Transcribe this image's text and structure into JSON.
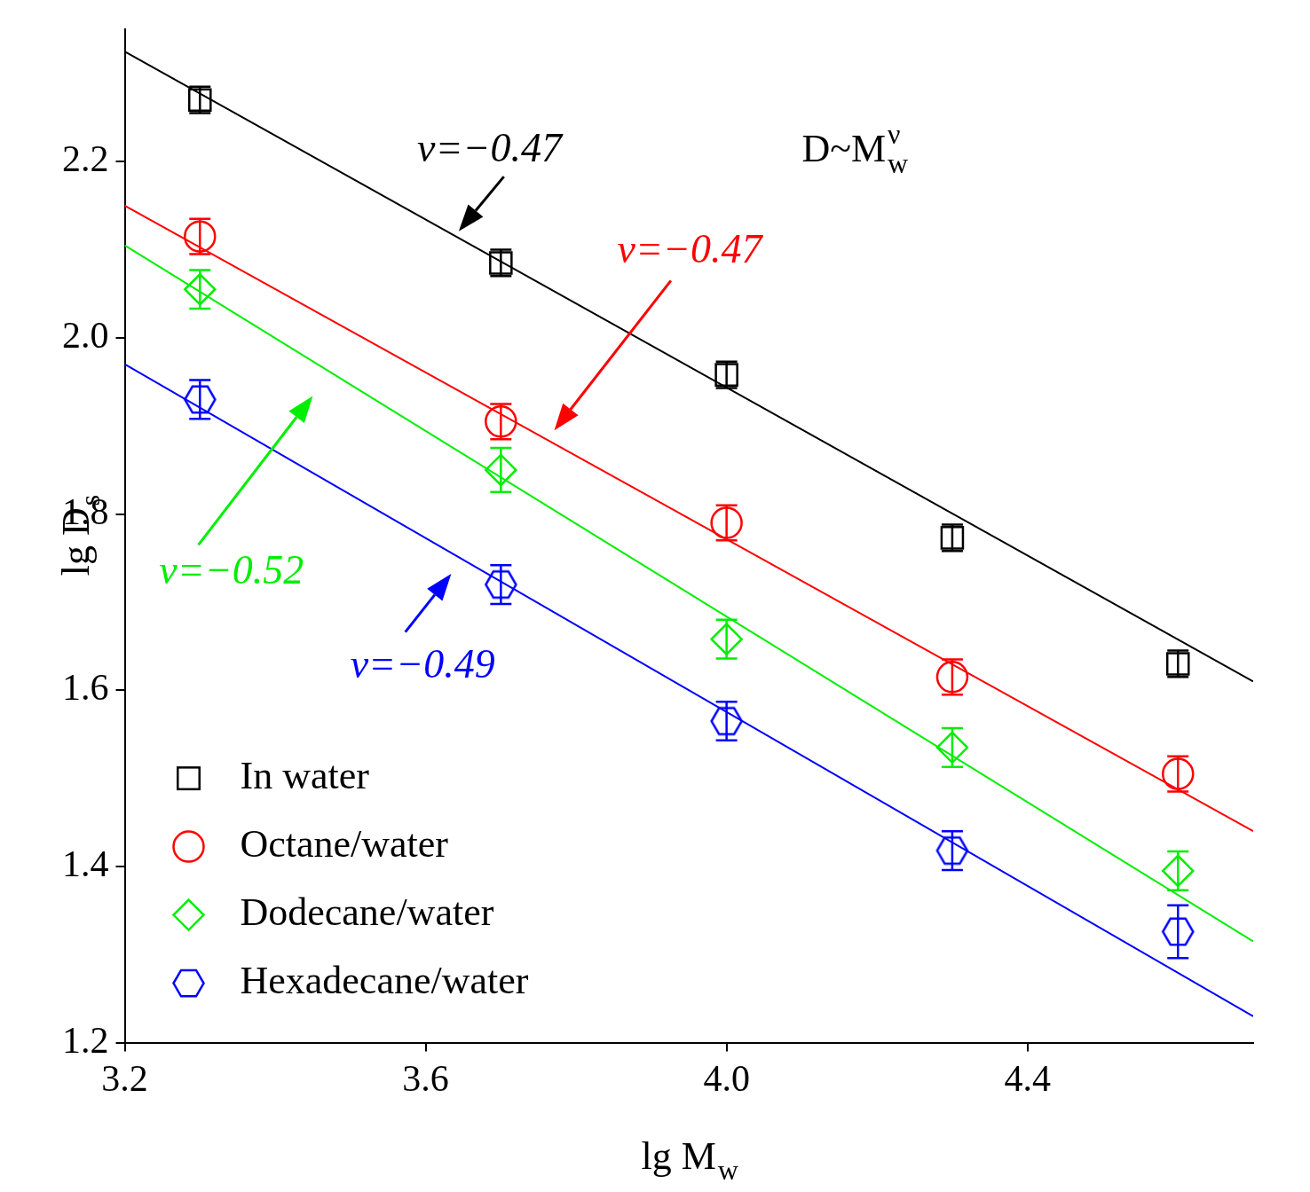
{
  "chart_data": {
    "type": "scatter",
    "x_label": {
      "base": "lg M",
      "sub": "w"
    },
    "y_label": {
      "base": "lg D",
      "sub": "s"
    },
    "formula": {
      "base": "D~M",
      "sub": "w",
      "sup": "ν"
    },
    "x": [
      3.3,
      3.7,
      4.0,
      4.3,
      4.6
    ],
    "series": [
      {
        "name": "In water",
        "color": "#000000",
        "marker": "square",
        "values": [
          2.27,
          2.085,
          1.958,
          1.773,
          1.63
        ],
        "errors": [
          0.015,
          0.015,
          0.015,
          0.015,
          0.015
        ],
        "fit": {
          "x": [
            3.2,
            4.7
          ],
          "y": [
            2.325,
            1.61
          ]
        }
      },
      {
        "name": "Octane/water",
        "color": "#ff0000",
        "marker": "circle",
        "values": [
          2.115,
          1.905,
          1.79,
          1.615,
          1.505
        ],
        "errors": [
          0.02,
          0.02,
          0.02,
          0.02,
          0.02
        ],
        "fit": {
          "x": [
            3.2,
            4.7
          ],
          "y": [
            2.15,
            1.44
          ]
        }
      },
      {
        "name": "Dodecane/water",
        "color": "#00ee00",
        "marker": "diamond",
        "values": [
          2.055,
          1.85,
          1.658,
          1.535,
          1.395
        ],
        "errors": [
          0.022,
          0.025,
          0.022,
          0.022,
          0.022
        ],
        "fit": {
          "x": [
            3.2,
            4.7
          ],
          "y": [
            2.105,
            1.315
          ]
        }
      },
      {
        "name": "Hexadecane/water",
        "color": "#0000ff",
        "marker": "hexagon",
        "values": [
          1.93,
          1.72,
          1.565,
          1.418,
          1.326
        ],
        "errors": [
          0.022,
          0.022,
          0.022,
          0.022,
          0.03
        ],
        "fit": {
          "x": [
            3.2,
            4.7
          ],
          "y": [
            1.97,
            1.23
          ]
        }
      }
    ],
    "annotations": [
      {
        "text": "v=−0.47",
        "color": "#000000"
      },
      {
        "text": "v=−0.47",
        "color": "#ff0000"
      },
      {
        "text": "v=−0.52",
        "color": "#00ee00"
      },
      {
        "text": "v=−0.49",
        "color": "#0000ff"
      }
    ],
    "xlim": [
      3.2,
      4.7
    ],
    "xticks": [
      3.2,
      3.6,
      {
        "value": 4,
        "label": "4.0"
      },
      4.4
    ],
    "ylim": [
      1.2,
      2.35
    ],
    "yticks": [
      1.2,
      1.4,
      1.6,
      1.8,
      {
        "value": 2,
        "label": "2.0"
      },
      2.2
    ],
    "grid": false,
    "legend": "lower left"
  }
}
